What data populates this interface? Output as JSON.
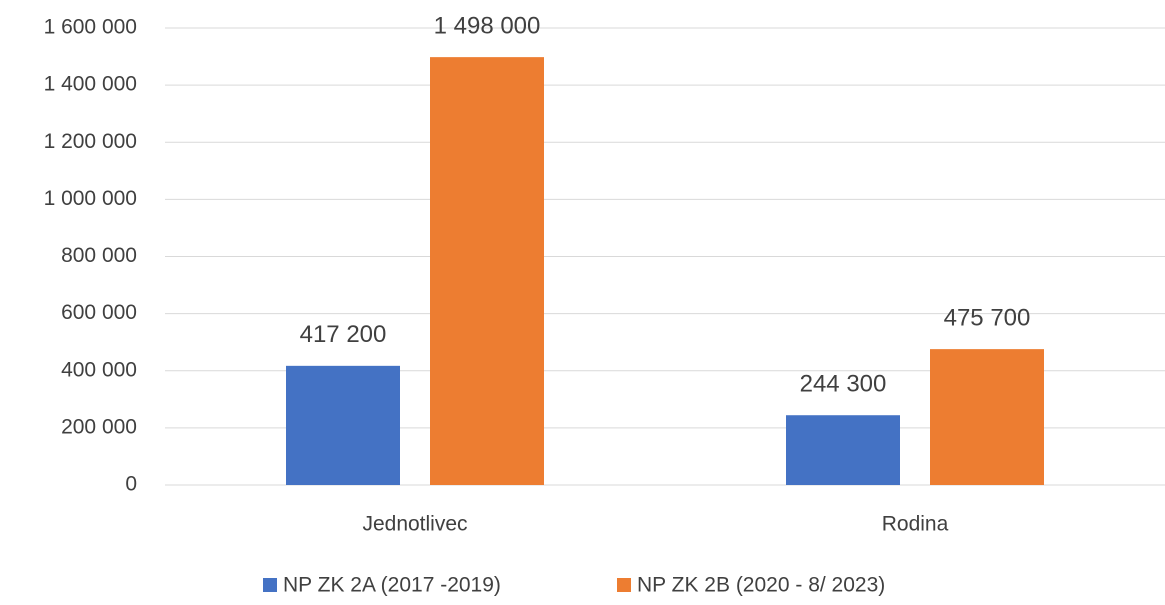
{
  "chart_data": {
    "type": "bar",
    "categories": [
      "Jednotlivec",
      "Rodina"
    ],
    "series": [
      {
        "name": "NP ZK 2A (2017 -2019)",
        "color": "#4472c4",
        "values": [
          417200,
          244300
        ],
        "value_labels": [
          "417 200",
          "244 300"
        ]
      },
      {
        "name": "NP ZK 2B (2020 - 8/ 2023)",
        "color": "#ed7d31",
        "values": [
          1498000,
          475700
        ],
        "value_labels": [
          "1 498 000",
          "475 700"
        ]
      }
    ],
    "ylim": [
      0,
      1600000
    ],
    "yticks": [
      0,
      {
        "value": 200000,
        "label": "200 000"
      },
      {
        "value": 400000,
        "label": "400 000"
      },
      {
        "value": 600000,
        "label": "600 000"
      },
      {
        "value": 800000,
        "label": "800 000"
      },
      {
        "value": 1000000,
        "label": "1 000 000"
      },
      {
        "value": 1200000,
        "label": "1 200 000"
      },
      {
        "value": 1400000,
        "label": "1 400 000"
      },
      {
        "value": 1600000,
        "label": "1 600 000"
      }
    ],
    "grid": true,
    "legend": "bottom"
  }
}
